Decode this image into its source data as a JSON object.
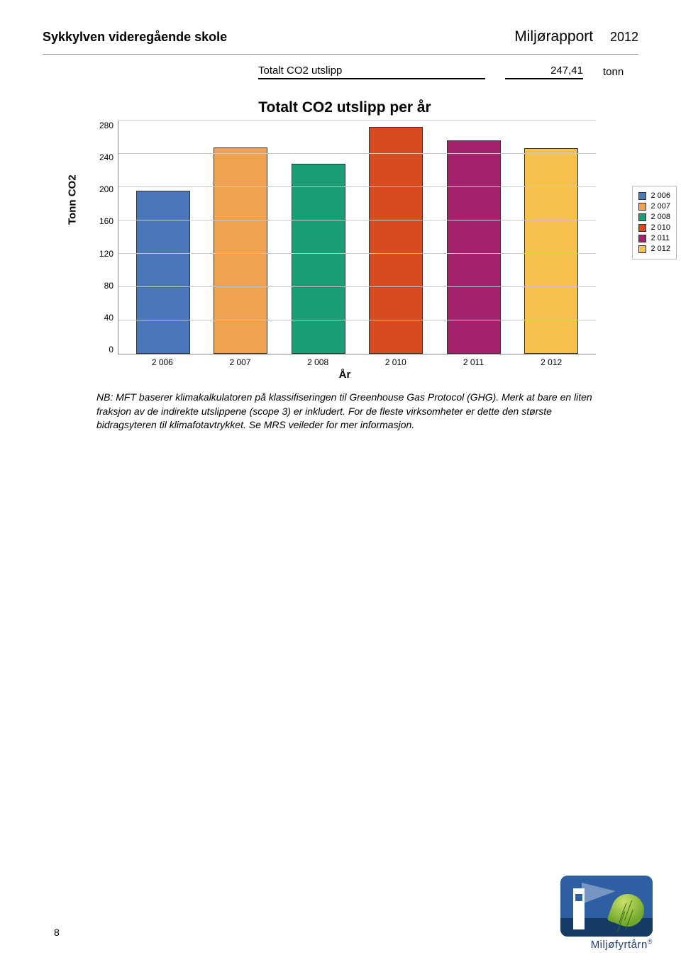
{
  "header": {
    "school": "Sykkylven videregående skole",
    "report_title": "Miljørapport",
    "year": "2012"
  },
  "totals": {
    "label": "Totalt CO2 utslipp",
    "value": "247,41",
    "unit": "tonn"
  },
  "chart": {
    "type": "bar",
    "title": "Totalt CO2 utslipp per år",
    "ylabel": "Tonn CO2",
    "xlabel": "År",
    "ylim": [
      0,
      280
    ],
    "ytick_step": 40,
    "yticks": [
      "280",
      "240",
      "200",
      "160",
      "120",
      "80",
      "40",
      "0"
    ],
    "grid_color": "#c8c8c8",
    "axis_color": "#888888",
    "background_color": "#ffffff",
    "bar_width_pct": 11.5,
    "title_fontsize": 21,
    "label_fontsize": 15,
    "tick_fontsize": 12,
    "series": [
      {
        "label": "2 006",
        "value": 196,
        "color": "#4a77ba"
      },
      {
        "label": "2 007",
        "value": 248,
        "color": "#f1a251"
      },
      {
        "label": "2 008",
        "value": 228,
        "color": "#1b9e77"
      },
      {
        "label": "2 010",
        "value": 272,
        "color": "#d84b20"
      },
      {
        "label": "2 011",
        "value": 256,
        "color": "#a4216b"
      },
      {
        "label": "2 012",
        "value": 247,
        "color": "#f4c24c"
      }
    ],
    "legend": [
      {
        "label": "2 006",
        "color": "#4a77ba"
      },
      {
        "label": "2 007",
        "color": "#f1a251"
      },
      {
        "label": "2 008",
        "color": "#1b9e77"
      },
      {
        "label": "2 010",
        "color": "#d84b20"
      },
      {
        "label": "2 011",
        "color": "#a4216b"
      },
      {
        "label": "2 012",
        "color": "#f4c24c"
      }
    ]
  },
  "note": "NB: MFT baserer klimakalkulatoren på klassifiseringen til Greenhouse Gas Protocol (GHG). Merk at bare en liten fraksjon av de indirekte utslippene (scope 3) er inkludert. For de fleste virksomheter er dette den største bidragsyteren til klimafotavtrykket. Se MRS veileder for mer informasjon.",
  "footer": {
    "page_number": "8",
    "logo_text": "Miljøfyrtårn"
  }
}
